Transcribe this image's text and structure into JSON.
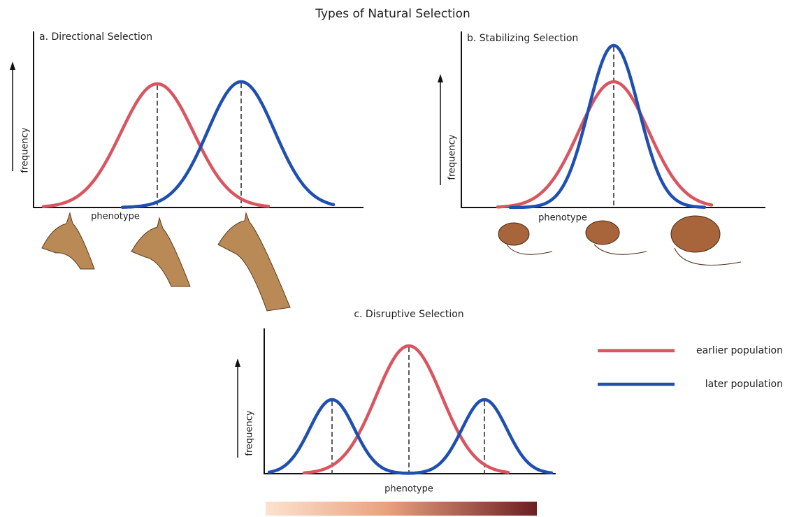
{
  "title": "Types of Natural Selection",
  "panels": [
    {
      "title": "a. Directional Selection",
      "y_label": "frequency",
      "x_label": "phenotype"
    },
    {
      "title": "b. Stabilizing Selection",
      "y_label": "frequency",
      "x_label": "phenotype"
    },
    {
      "title": "c. Disruptive Selection",
      "y_label": "frequency",
      "x_label": "phenotype"
    }
  ],
  "legend": [
    {
      "label": "earlier population",
      "color": "#d9555f"
    },
    {
      "label": "later population",
      "color": "#1f4fb0"
    }
  ]
}
